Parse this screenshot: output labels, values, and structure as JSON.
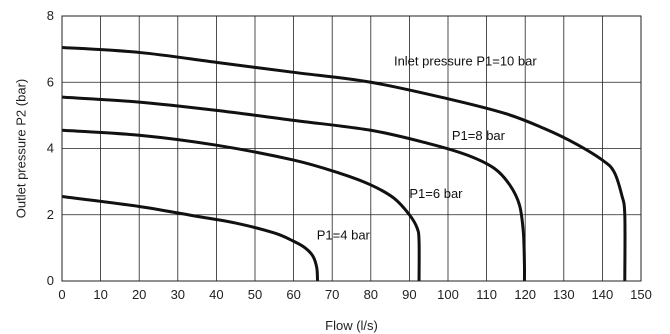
{
  "chart_data": {
    "type": "line",
    "xlabel": "Flow (l/s)",
    "ylabel": "Outlet pressure P2 (bar)",
    "xlim": [
      0,
      150
    ],
    "ylim": [
      0,
      8
    ],
    "x_ticks": [
      0,
      10,
      20,
      30,
      40,
      50,
      60,
      70,
      80,
      90,
      100,
      110,
      120,
      130,
      140,
      150
    ],
    "y_ticks": [
      0,
      2,
      4,
      6,
      8
    ],
    "grid": true,
    "line_color": "#111111",
    "grid_color": "#222222",
    "series": [
      {
        "annotation": "Inlet pressure P1=10 bar",
        "annotation_at": [
          86,
          6.5
        ],
        "points": [
          [
            0,
            7.05
          ],
          [
            20,
            6.9
          ],
          [
            40,
            6.6
          ],
          [
            60,
            6.3
          ],
          [
            80,
            6.0
          ],
          [
            100,
            5.5
          ],
          [
            115,
            5.05
          ],
          [
            125,
            4.6
          ],
          [
            133,
            4.15
          ],
          [
            140,
            3.65
          ],
          [
            143,
            3.3
          ],
          [
            145,
            2.6
          ],
          [
            145.8,
            2.0
          ],
          [
            145.8,
            0
          ]
        ]
      },
      {
        "annotation": "P1=8 bar",
        "annotation_at": [
          101,
          4.25
        ],
        "points": [
          [
            0,
            5.55
          ],
          [
            20,
            5.4
          ],
          [
            40,
            5.15
          ],
          [
            60,
            4.85
          ],
          [
            80,
            4.55
          ],
          [
            95,
            4.15
          ],
          [
            105,
            3.8
          ],
          [
            112,
            3.4
          ],
          [
            116,
            2.9
          ],
          [
            118.5,
            2.3
          ],
          [
            119.5,
            1.5
          ],
          [
            119.8,
            0.5
          ],
          [
            119.8,
            0
          ]
        ]
      },
      {
        "annotation": "P1=6 bar",
        "annotation_at": [
          90,
          2.5
        ],
        "points": [
          [
            0,
            4.55
          ],
          [
            20,
            4.4
          ],
          [
            40,
            4.1
          ],
          [
            60,
            3.65
          ],
          [
            72,
            3.25
          ],
          [
            80,
            2.9
          ],
          [
            86,
            2.5
          ],
          [
            90,
            2.0
          ],
          [
            92,
            1.6
          ],
          [
            92.5,
            1.2
          ],
          [
            92.5,
            0
          ]
        ]
      },
      {
        "annotation": "P1=4 bar",
        "annotation_at": [
          66,
          1.25
        ],
        "points": [
          [
            0,
            2.55
          ],
          [
            20,
            2.25
          ],
          [
            35,
            1.95
          ],
          [
            45,
            1.75
          ],
          [
            55,
            1.45
          ],
          [
            60,
            1.2
          ],
          [
            63,
            1.0
          ],
          [
            65,
            0.75
          ],
          [
            66,
            0.4
          ],
          [
            66.2,
            0
          ]
        ]
      }
    ]
  }
}
